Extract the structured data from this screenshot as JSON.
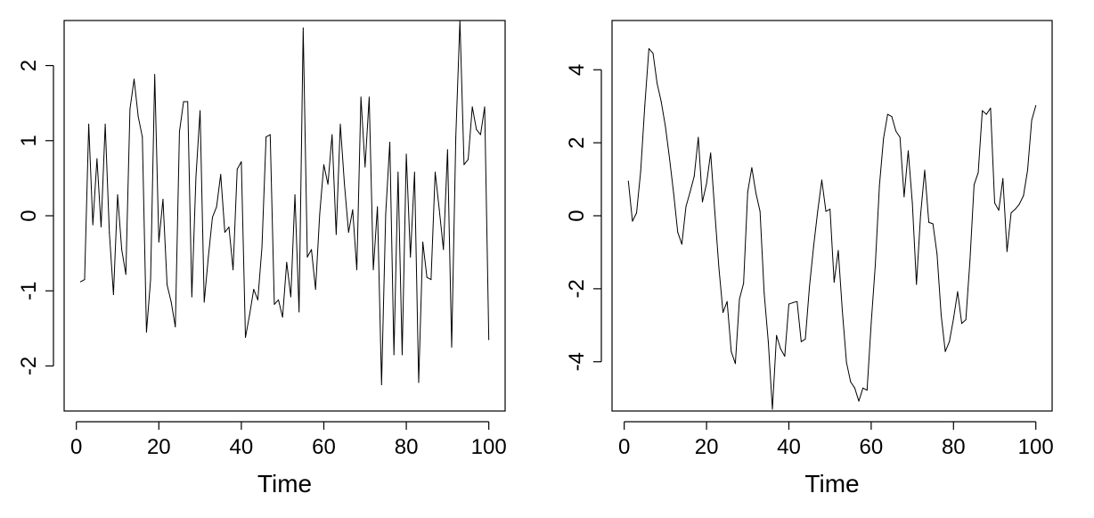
{
  "chart_data": [
    {
      "type": "line",
      "xlabel": "Time",
      "ylabel": "",
      "xlim": [
        1,
        100
      ],
      "ylim": [
        -2.6,
        2.6
      ],
      "xticks": [
        "0",
        "20",
        "40",
        "60",
        "80",
        "100"
      ],
      "yticks": [
        "-2",
        "-1",
        "0",
        "1",
        "2"
      ],
      "grid": false,
      "color": "#000000",
      "series": [
        {
          "x": [
            1,
            2,
            3,
            4,
            5,
            6,
            7,
            8,
            9,
            10,
            11,
            12,
            13,
            14,
            15,
            16,
            17,
            18,
            19,
            20,
            21,
            22,
            23,
            24,
            25,
            26,
            27,
            28,
            29,
            30,
            31,
            32,
            33,
            34,
            35,
            36,
            37,
            38,
            39,
            40,
            41,
            42,
            43,
            44,
            45,
            46,
            47,
            48,
            49,
            50,
            51,
            52,
            53,
            54,
            55,
            56,
            57,
            58,
            59,
            60,
            61,
            62,
            63,
            64,
            65,
            66,
            67,
            68,
            69,
            70,
            71,
            72,
            73,
            74,
            75,
            76,
            77,
            78,
            79,
            80,
            81,
            82,
            83,
            84,
            85,
            86,
            87,
            88,
            89,
            90,
            91,
            92,
            93,
            94,
            95,
            96,
            97,
            98,
            99,
            100
          ],
          "values": [
            -0.88,
            -0.85,
            1.22,
            -0.12,
            0.76,
            -0.15,
            1.22,
            -0.22,
            -1.05,
            0.28,
            -0.45,
            -0.78,
            1.42,
            1.82,
            1.32,
            1.05,
            -1.55,
            -0.85,
            1.88,
            -0.35,
            0.22,
            -0.92,
            -1.15,
            -1.48,
            1.12,
            1.52,
            1.52,
            -1.08,
            0.52,
            1.4,
            -1.15,
            -0.55,
            -0.02,
            0.12,
            0.55,
            -0.22,
            -0.15,
            -0.72,
            0.62,
            0.72,
            -1.62,
            -1.32,
            -0.98,
            -1.12,
            -0.42,
            1.05,
            1.08,
            -1.18,
            -1.12,
            -1.35,
            -0.62,
            -1.08,
            0.28,
            -1.28,
            2.5,
            -0.55,
            -0.45,
            -0.98,
            0.02,
            0.68,
            0.42,
            1.08,
            -0.25,
            1.22,
            0.42,
            -0.22,
            0.08,
            -0.72,
            1.58,
            0.65,
            1.58,
            -0.72,
            0.12,
            -2.25,
            0.02,
            0.98,
            -1.85,
            0.58,
            -1.85,
            0.82,
            -0.55,
            0.58,
            -2.22,
            -0.35,
            -0.82,
            -0.85,
            0.58,
            0.08,
            -0.45,
            0.88,
            -1.75,
            1.05,
            2.6,
            0.68,
            0.75,
            1.45,
            1.15,
            1.08,
            1.45,
            -1.65
          ]
        }
      ]
    },
    {
      "type": "line",
      "xlabel": "Time",
      "ylabel": "",
      "xlim": [
        1,
        100
      ],
      "ylim": [
        -5.35,
        5.35
      ],
      "xticks": [
        "0",
        "20",
        "40",
        "60",
        "80",
        "100"
      ],
      "yticks": [
        "-4",
        "-2",
        "0",
        "2",
        "4"
      ],
      "grid": false,
      "color": "#000000",
      "series": [
        {
          "x": [
            1,
            2,
            3,
            4,
            5,
            6,
            7,
            8,
            9,
            10,
            11,
            12,
            13,
            14,
            15,
            16,
            17,
            18,
            19,
            20,
            21,
            22,
            23,
            24,
            25,
            26,
            27,
            28,
            29,
            30,
            31,
            32,
            33,
            34,
            35,
            36,
            37,
            38,
            39,
            40,
            41,
            42,
            43,
            44,
            45,
            46,
            47,
            48,
            49,
            50,
            51,
            52,
            53,
            54,
            55,
            56,
            57,
            58,
            59,
            60,
            61,
            62,
            63,
            64,
            65,
            66,
            67,
            68,
            69,
            70,
            71,
            72,
            73,
            74,
            75,
            76,
            77,
            78,
            79,
            80,
            81,
            82,
            83,
            84,
            85,
            86,
            87,
            88,
            89,
            90,
            91,
            92,
            93,
            94,
            95,
            96,
            97,
            98,
            99,
            100
          ],
          "values": [
            0.95,
            -0.15,
            0.08,
            1.22,
            3.02,
            4.58,
            4.45,
            3.62,
            3.12,
            2.45,
            1.58,
            0.62,
            -0.45,
            -0.78,
            0.25,
            0.65,
            1.08,
            2.15,
            0.38,
            0.88,
            1.72,
            0.12,
            -1.42,
            -2.65,
            -2.35,
            -3.72,
            -4.05,
            -2.28,
            -1.85,
            0.65,
            1.32,
            0.62,
            0.12,
            -2.12,
            -3.45,
            -5.3,
            -3.28,
            -3.65,
            -3.85,
            -2.42,
            -2.38,
            -2.35,
            -3.45,
            -3.38,
            -1.95,
            -0.85,
            0.12,
            0.98,
            0.12,
            0.18,
            -1.82,
            -0.95,
            -2.62,
            -4.02,
            -4.55,
            -4.72,
            -5.08,
            -4.72,
            -4.78,
            -2.95,
            -1.35,
            0.82,
            2.12,
            2.78,
            2.72,
            2.32,
            2.15,
            0.52,
            1.78,
            0.35,
            -1.88,
            0.02,
            1.25,
            -0.18,
            -0.22,
            -1.05,
            -2.72,
            -3.72,
            -3.45,
            -2.82,
            -2.08,
            -2.95,
            -2.85,
            -1.22,
            0.85,
            1.18,
            2.88,
            2.78,
            2.95,
            0.35,
            0.15,
            1.02,
            -0.98,
            0.08,
            0.18,
            0.32,
            0.55,
            1.25,
            2.62,
            3.02
          ]
        }
      ]
    }
  ]
}
